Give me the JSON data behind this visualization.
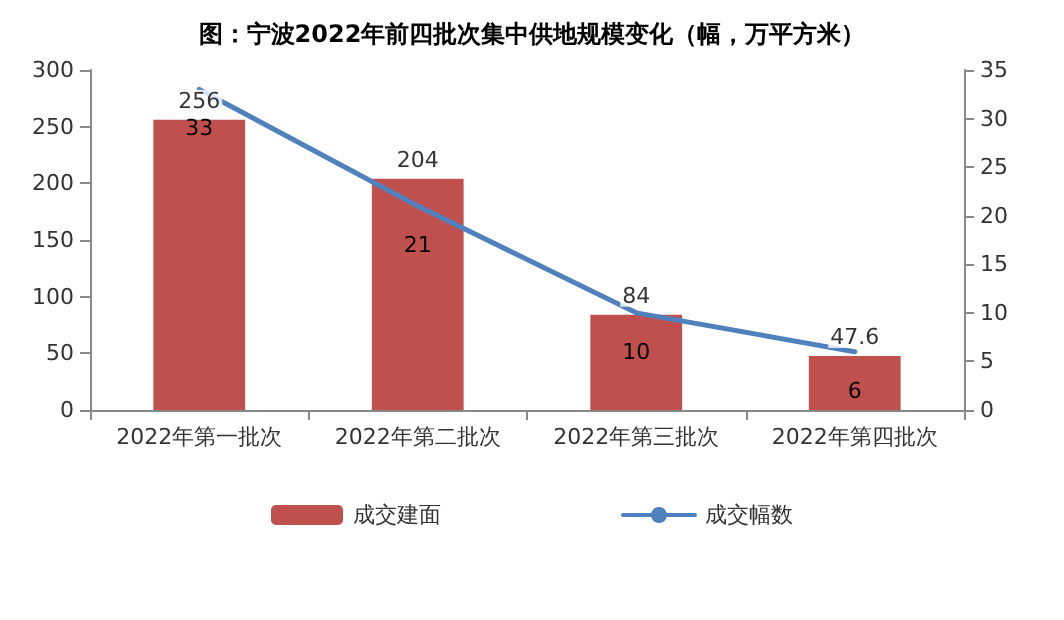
{
  "chart_data": {
    "type": "bar",
    "title": "图：宁波2022年前四批次集中供地规模变化（幅，万平方米）",
    "categories": [
      "2022年第一批次",
      "2022年第二批次",
      "2022年第三批次",
      "2022年第四批次"
    ],
    "series": [
      {
        "name": "成交建面",
        "color": "#c0504d",
        "values": [
          256,
          204,
          84,
          47.6
        ]
      },
      {
        "name": "成交幅数",
        "type": "line",
        "axis": "y2",
        "color": "#4f81bd",
        "values": [
          33,
          21,
          10,
          6
        ]
      }
    ],
    "ylim": [
      0,
      300
    ],
    "yticks": [
      0,
      50,
      100,
      150,
      200,
      250,
      300
    ],
    "y2lim": [
      0,
      35
    ],
    "y2ticks": [
      0,
      5,
      10,
      15,
      20,
      25,
      30,
      35
    ],
    "data_labels": true,
    "grid": false,
    "legend": "bottom",
    "marker": "none",
    "line_style": "solid"
  }
}
